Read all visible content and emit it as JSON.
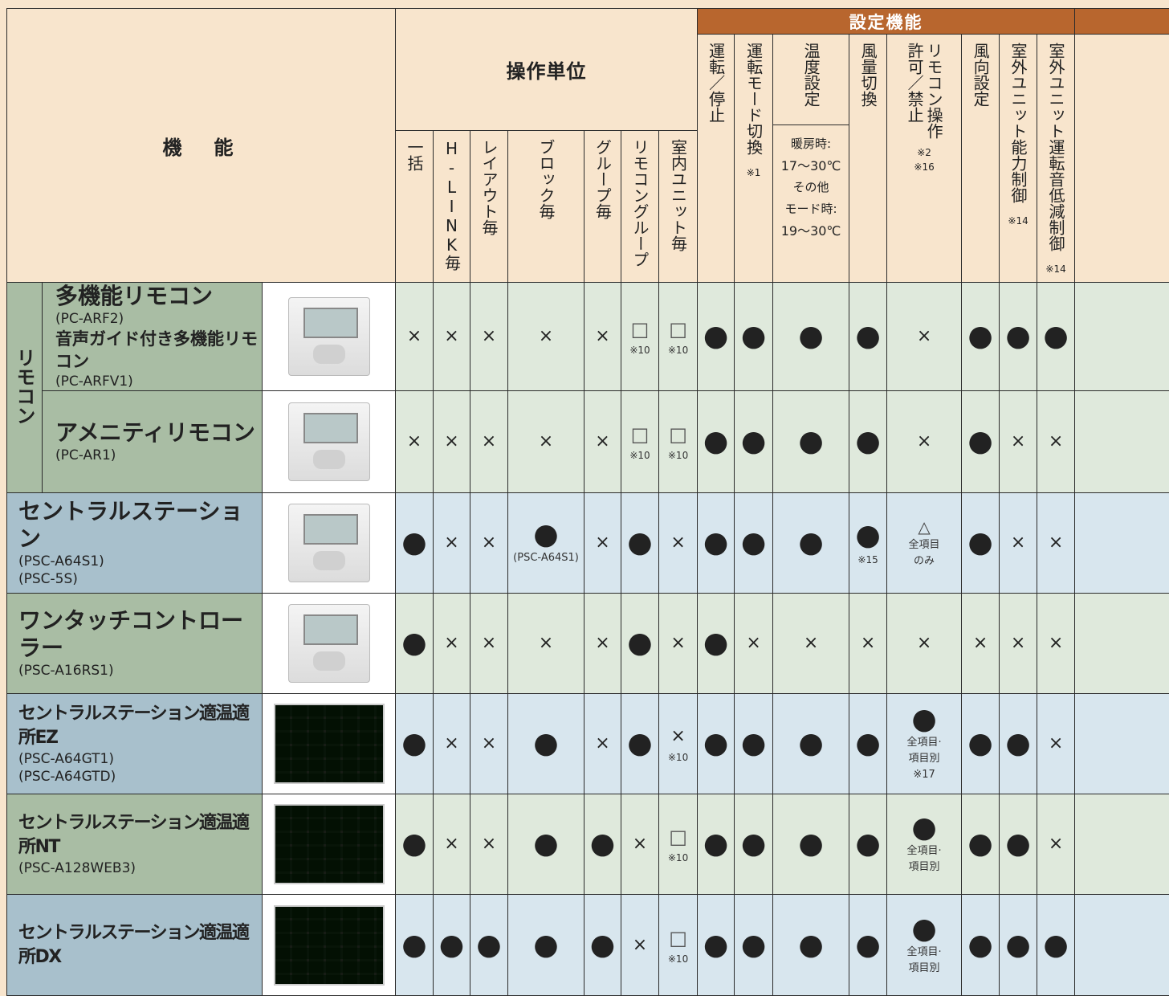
{
  "header": {
    "function": "機　能",
    "operation_unit": "操作単位",
    "setting_function": "設定機能"
  },
  "operation_columns": [
    {
      "lines": [
        "一括"
      ]
    },
    {
      "lines": [
        "H-LINK毎"
      ]
    },
    {
      "lines": [
        "レイアウト毎"
      ]
    },
    {
      "lines": [
        "ブロック毎"
      ]
    },
    {
      "lines": [
        "グループ毎"
      ]
    },
    {
      "lines": [
        "リモコングループ"
      ]
    },
    {
      "lines": [
        "室内ユニット毎"
      ]
    }
  ],
  "setting_columns": [
    {
      "lines": [
        "運転／停止"
      ]
    },
    {
      "lines": [
        "運転モード切換"
      ],
      "notes": [
        "※1"
      ]
    },
    {
      "lines": [
        "温度設定"
      ],
      "details": [
        "暖房時:",
        "17〜30℃",
        "その他",
        "モード時:",
        "19〜30℃"
      ]
    },
    {
      "lines": [
        "風量切換"
      ]
    },
    {
      "lines": [
        "リモコン操作",
        "許可／禁止"
      ],
      "notes": [
        "※2",
        "※16"
      ]
    },
    {
      "lines": [
        "風向設定"
      ]
    },
    {
      "lines": [
        "室外ユニット能力制御"
      ],
      "notes": [
        "※14"
      ]
    },
    {
      "lines": [
        "室外ユニット運転音低減制御"
      ],
      "notes": [
        "※14"
      ]
    }
  ],
  "group_label": "リモコン",
  "rows": [
    {
      "color": "#dfe9dc",
      "name_color": "#a9bda4",
      "products": [
        {
          "name": "多機能リモコン",
          "models": [
            "(PC-ARF2)"
          ]
        },
        {
          "name": "音声ガイド付き多機能リモコン",
          "models": [
            "(PC-ARFV1)"
          ]
        }
      ],
      "cells": [
        {
          "mark": "×"
        },
        {
          "mark": "×"
        },
        {
          "mark": "×"
        },
        {
          "mark": "×"
        },
        {
          "mark": "×"
        },
        {
          "mark": "□",
          "note": "※10"
        },
        {
          "mark": "□",
          "note": "※10"
        },
        {
          "mark": "●"
        },
        {
          "mark": "●"
        },
        {
          "mark": "●"
        },
        {
          "mark": "●"
        },
        {
          "mark": "×"
        },
        {
          "mark": "●"
        },
        {
          "mark": "●"
        },
        {
          "mark": "●"
        }
      ]
    },
    {
      "color": "#dfe9dc",
      "name_color": "#a9bda4",
      "products": [
        {
          "name": "アメニティリモコン",
          "models": [
            "(PC-AR1)"
          ]
        }
      ],
      "cells": [
        {
          "mark": "×"
        },
        {
          "mark": "×"
        },
        {
          "mark": "×"
        },
        {
          "mark": "×"
        },
        {
          "mark": "×"
        },
        {
          "mark": "□",
          "note": "※10"
        },
        {
          "mark": "□",
          "note": "※10"
        },
        {
          "mark": "●"
        },
        {
          "mark": "●"
        },
        {
          "mark": "●"
        },
        {
          "mark": "●"
        },
        {
          "mark": "×"
        },
        {
          "mark": "●"
        },
        {
          "mark": "×"
        },
        {
          "mark": "×"
        }
      ]
    },
    {
      "color": "#d8e6ee",
      "name_color": "#a8c0cc",
      "products": [
        {
          "name": "セントラルステーション",
          "models": [
            "(PSC-A64S1)",
            "(PSC-5S)"
          ]
        }
      ],
      "cells": [
        {
          "mark": "●"
        },
        {
          "mark": "×"
        },
        {
          "mark": "×"
        },
        {
          "mark": "●",
          "sub": [
            "(PSC-A64S1)"
          ]
        },
        {
          "mark": "×"
        },
        {
          "mark": "●"
        },
        {
          "mark": "×"
        },
        {
          "mark": "●"
        },
        {
          "mark": "●"
        },
        {
          "mark": "●"
        },
        {
          "mark": "●",
          "note": "※15"
        },
        {
          "mark": "△",
          "sub": [
            "全項目",
            "のみ"
          ]
        },
        {
          "mark": "●"
        },
        {
          "mark": "×"
        },
        {
          "mark": "×"
        }
      ]
    },
    {
      "color": "#dfe9dc",
      "name_color": "#a9bda4",
      "products": [
        {
          "name": "ワンタッチコントローラー",
          "models": [
            "(PSC-A16RS1)"
          ]
        }
      ],
      "cells": [
        {
          "mark": "●"
        },
        {
          "mark": "×"
        },
        {
          "mark": "×"
        },
        {
          "mark": "×"
        },
        {
          "mark": "×"
        },
        {
          "mark": "●"
        },
        {
          "mark": "×"
        },
        {
          "mark": "●"
        },
        {
          "mark": "×"
        },
        {
          "mark": "×"
        },
        {
          "mark": "×"
        },
        {
          "mark": "×"
        },
        {
          "mark": "×"
        },
        {
          "mark": "×"
        },
        {
          "mark": "×"
        }
      ]
    },
    {
      "color": "#d8e6ee",
      "name_color": "#a8c0cc",
      "products": [
        {
          "name": "セントラルステーション適温適所EZ",
          "models": [
            "(PSC-A64GT1)",
            "(PSC-A64GTD)"
          ]
        }
      ],
      "cells": [
        {
          "mark": "●"
        },
        {
          "mark": "×"
        },
        {
          "mark": "×"
        },
        {
          "mark": "●"
        },
        {
          "mark": "×"
        },
        {
          "mark": "●"
        },
        {
          "mark": "×",
          "note": "※10"
        },
        {
          "mark": "●"
        },
        {
          "mark": "●"
        },
        {
          "mark": "●"
        },
        {
          "mark": "●"
        },
        {
          "mark": "●",
          "sub": [
            "全項目·",
            "項目別",
            "※17"
          ]
        },
        {
          "mark": "●"
        },
        {
          "mark": "●"
        },
        {
          "mark": "×"
        }
      ]
    },
    {
      "color": "#dfe9dc",
      "name_color": "#a9bda4",
      "products": [
        {
          "name": "セントラルステーション適温適所NT",
          "models": [
            "(PSC-A128WEB3)"
          ]
        }
      ],
      "cells": [
        {
          "mark": "●"
        },
        {
          "mark": "×"
        },
        {
          "mark": "×"
        },
        {
          "mark": "●"
        },
        {
          "mark": "●"
        },
        {
          "mark": "×"
        },
        {
          "mark": "□",
          "note": "※10"
        },
        {
          "mark": "●"
        },
        {
          "mark": "●"
        },
        {
          "mark": "●"
        },
        {
          "mark": "●"
        },
        {
          "mark": "●",
          "sub": [
            "全項目·",
            "項目別"
          ]
        },
        {
          "mark": "●"
        },
        {
          "mark": "●"
        },
        {
          "mark": "×"
        }
      ]
    },
    {
      "color": "#d8e6ee",
      "name_color": "#a8c0cc",
      "products": [
        {
          "name": "セントラルステーション適温適所DX",
          "models": []
        }
      ],
      "cells": [
        {
          "mark": "●"
        },
        {
          "mark": "●"
        },
        {
          "mark": "●"
        },
        {
          "mark": "●"
        },
        {
          "mark": "●"
        },
        {
          "mark": "×"
        },
        {
          "mark": "□",
          "note": "※10"
        },
        {
          "mark": "●"
        },
        {
          "mark": "●"
        },
        {
          "mark": "●"
        },
        {
          "mark": "●"
        },
        {
          "mark": "●",
          "sub": [
            "全項目·",
            "項目別"
          ]
        },
        {
          "mark": "●"
        },
        {
          "mark": "●"
        },
        {
          "mark": "●"
        }
      ]
    }
  ]
}
